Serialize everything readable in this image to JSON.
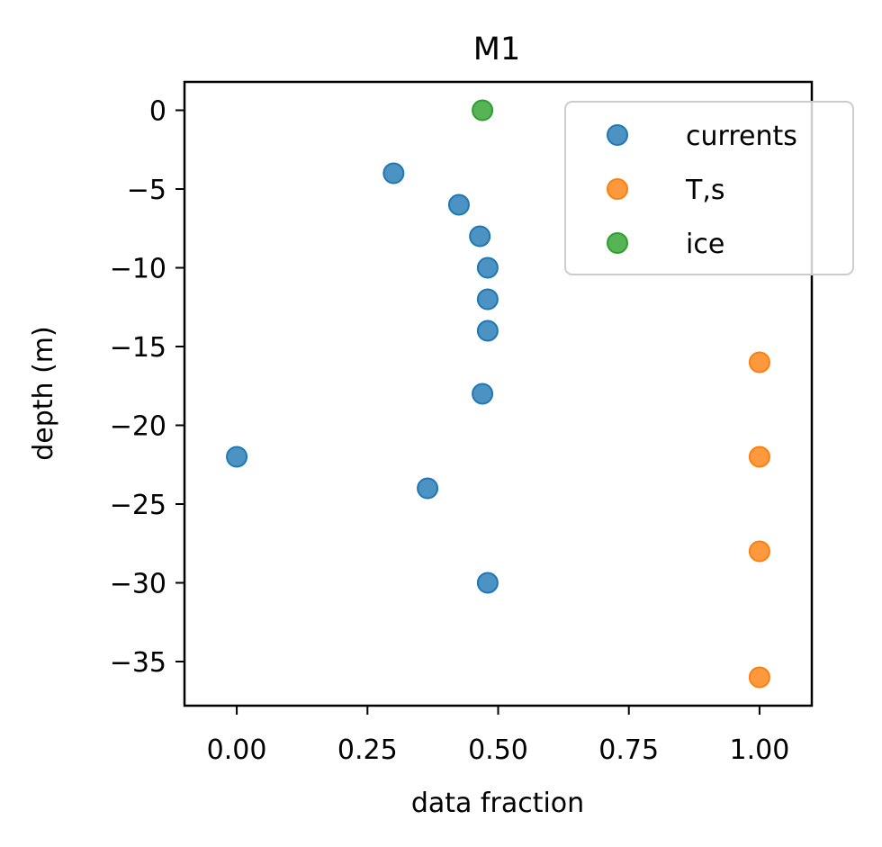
{
  "chart_data": {
    "type": "scatter",
    "title": "M1",
    "xlabel": "data fraction",
    "ylabel": "depth (m)",
    "xlim": [
      -0.1,
      1.1
    ],
    "ylim": [
      -37.8,
      1.8
    ],
    "xticks": [
      0.0,
      0.25,
      0.5,
      0.75,
      1.0
    ],
    "xtick_labels": [
      "0.00",
      "0.25",
      "0.50",
      "0.75",
      "1.00"
    ],
    "yticks": [
      0,
      -5,
      -10,
      -15,
      -20,
      -25,
      -30,
      -35
    ],
    "ytick_labels": [
      "0",
      "−5",
      "−10",
      "−15",
      "−20",
      "−25",
      "−30",
      "−35"
    ],
    "grid": false,
    "legend_position": "top-right",
    "series": [
      {
        "name": "currents",
        "color": "#1f77b4",
        "points": [
          {
            "x": 0.3,
            "y": -4
          },
          {
            "x": 0.425,
            "y": -6
          },
          {
            "x": 0.465,
            "y": -8
          },
          {
            "x": 0.48,
            "y": -10
          },
          {
            "x": 0.48,
            "y": -12
          },
          {
            "x": 0.48,
            "y": -14
          },
          {
            "x": 0.47,
            "y": -18
          },
          {
            "x": 0.0,
            "y": -22
          },
          {
            "x": 0.365,
            "y": -24
          },
          {
            "x": 0.48,
            "y": -30
          }
        ]
      },
      {
        "name": "T,s",
        "color": "#ff7f0e",
        "points": [
          {
            "x": 1.0,
            "y": -16
          },
          {
            "x": 1.0,
            "y": -22
          },
          {
            "x": 1.0,
            "y": -28
          },
          {
            "x": 1.0,
            "y": -36
          }
        ]
      },
      {
        "name": "ice",
        "color": "#2ca02c",
        "points": [
          {
            "x": 0.47,
            "y": 0
          }
        ]
      }
    ]
  }
}
